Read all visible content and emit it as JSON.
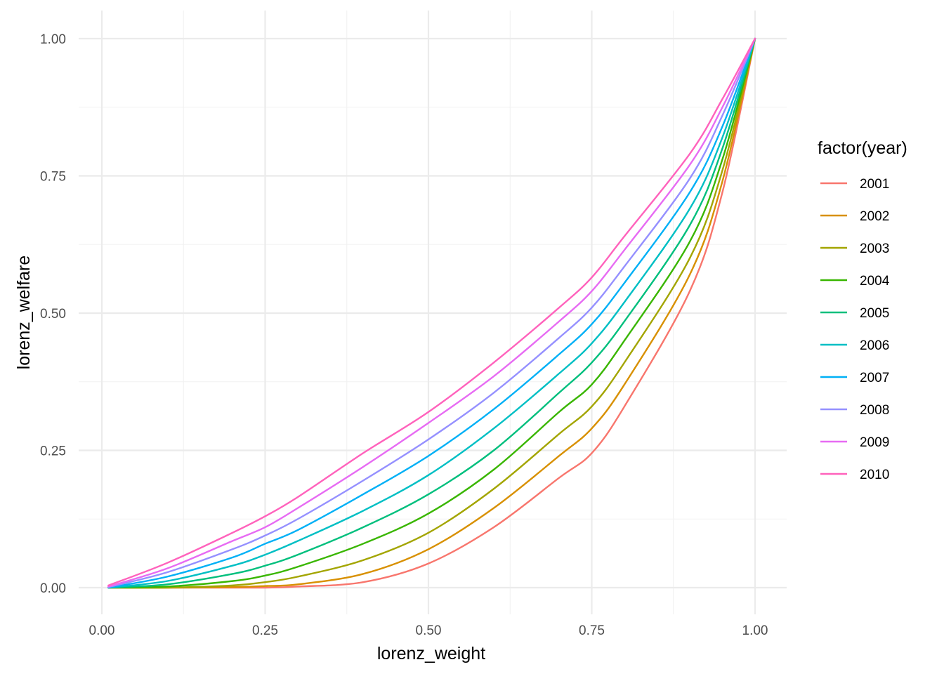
{
  "chart_data": {
    "type": "line",
    "title": "",
    "xlabel": "lorenz_weight",
    "ylabel": "lorenz_welfare",
    "xlim": [
      0,
      1
    ],
    "ylim": [
      0,
      1
    ],
    "x_ticks": [
      "0.00",
      "0.25",
      "0.50",
      "0.75",
      "1.00"
    ],
    "y_ticks": [
      "0.00",
      "0.25",
      "0.50",
      "0.75",
      "1.00"
    ],
    "grid": true,
    "legend": {
      "title": "factor(year)",
      "position": "right"
    },
    "x": [
      0.01,
      0.1,
      0.2,
      0.25,
      0.3,
      0.4,
      0.5,
      0.6,
      0.7,
      0.75,
      0.8,
      0.9,
      0.95,
      1.0
    ],
    "series": [
      {
        "name": "2001",
        "color": "#F8766D",
        "values": [
          0.0,
          0.0,
          0.0,
          0.0,
          0.002,
          0.01,
          0.044,
          0.11,
          0.2,
          0.245,
          0.33,
          0.54,
          0.72,
          1.0
        ]
      },
      {
        "name": "2002",
        "color": "#D89000",
        "values": [
          0.0,
          0.0,
          0.001,
          0.003,
          0.006,
          0.025,
          0.07,
          0.145,
          0.24,
          0.29,
          0.37,
          0.57,
          0.74,
          1.0
        ]
      },
      {
        "name": "2003",
        "color": "#A3A500",
        "values": [
          0.0,
          0.0,
          0.004,
          0.01,
          0.02,
          0.05,
          0.1,
          0.18,
          0.28,
          0.33,
          0.41,
          0.6,
          0.76,
          1.0
        ]
      },
      {
        "name": "2004",
        "color": "#39B600",
        "values": [
          0.0,
          0.002,
          0.012,
          0.022,
          0.038,
          0.08,
          0.135,
          0.215,
          0.32,
          0.37,
          0.45,
          0.63,
          0.78,
          1.0
        ]
      },
      {
        "name": "2005",
        "color": "#00BF7D",
        "values": [
          0.0,
          0.006,
          0.025,
          0.04,
          0.06,
          0.11,
          0.17,
          0.25,
          0.355,
          0.41,
          0.485,
          0.66,
          0.8,
          1.0
        ]
      },
      {
        "name": "2006",
        "color": "#00BFC4",
        "values": [
          0.0,
          0.012,
          0.04,
          0.06,
          0.085,
          0.14,
          0.205,
          0.29,
          0.39,
          0.445,
          0.52,
          0.69,
          0.82,
          1.0
        ]
      },
      {
        "name": "2007",
        "color": "#00B0F6",
        "values": [
          0.0,
          0.02,
          0.055,
          0.08,
          0.105,
          0.17,
          0.24,
          0.325,
          0.425,
          0.48,
          0.555,
          0.72,
          0.84,
          1.0
        ]
      },
      {
        "name": "2008",
        "color": "#9590FF",
        "values": [
          0.001,
          0.028,
          0.07,
          0.095,
          0.125,
          0.195,
          0.27,
          0.355,
          0.455,
          0.51,
          0.585,
          0.745,
          0.86,
          1.0
        ]
      },
      {
        "name": "2009",
        "color": "#E76BF3",
        "values": [
          0.002,
          0.035,
          0.085,
          0.11,
          0.145,
          0.22,
          0.3,
          0.385,
          0.485,
          0.54,
          0.615,
          0.77,
          0.875,
          1.0
        ]
      },
      {
        "name": "2010",
        "color": "#FF62BC",
        "values": [
          0.004,
          0.045,
          0.1,
          0.13,
          0.165,
          0.245,
          0.32,
          0.41,
          0.51,
          0.565,
          0.64,
          0.79,
          0.89,
          1.0
        ]
      }
    ]
  }
}
